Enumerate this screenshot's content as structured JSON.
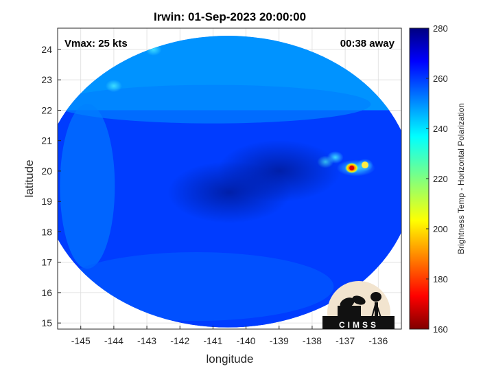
{
  "chart_data": {
    "type": "heatmap",
    "title": "Irwin: 01-Sep-2023 20:00:00",
    "xlabel": "longitude",
    "ylabel": "latitude",
    "xlim": [
      -145.7,
      -135.3
    ],
    "ylim": [
      14.8,
      24.7
    ],
    "x_ticks": [
      -145,
      -144,
      -143,
      -142,
      -141,
      -140,
      -139,
      -138,
      -137,
      -136
    ],
    "y_ticks": [
      15,
      16,
      17,
      18,
      19,
      20,
      21,
      22,
      23,
      24
    ],
    "grid": true,
    "annotations": {
      "top_left": "Vmax: 25 kts",
      "top_right": "00:38 away"
    },
    "colorbar": {
      "label": "Brightness Temp - Horizontal Polarization",
      "min": 160,
      "max": 280,
      "ticks": [
        160,
        180,
        200,
        220,
        240,
        260,
        280
      ],
      "colormap": "jet"
    },
    "swath_center": [
      -140.55,
      19.65
    ],
    "swath_radius_deg": [
      5.6,
      4.8
    ],
    "background_tb": 258,
    "features": [
      {
        "lon": -136.8,
        "lat": 20.1,
        "tb": 165,
        "note": "convective core"
      },
      {
        "lon": -136.4,
        "lat": 20.2,
        "tb": 210
      },
      {
        "lon": -137.6,
        "lat": 20.3,
        "tb": 235
      },
      {
        "lon": -137.3,
        "lat": 20.45,
        "tb": 240
      },
      {
        "lon": -144.0,
        "lat": 22.8,
        "tb": 232
      },
      {
        "lon": -142.8,
        "lat": 24.0,
        "tb": 228
      },
      {
        "lon": -139.0,
        "lat": 20.0,
        "tb": 268
      },
      {
        "lon": -140.5,
        "lat": 19.3,
        "tb": 266
      }
    ]
  },
  "logo": {
    "text": "CIMSS",
    "name": "cimss-logo"
  },
  "colors": {
    "axis": "#262626",
    "grid": "#dcdcdc",
    "background": "#ffffff"
  }
}
